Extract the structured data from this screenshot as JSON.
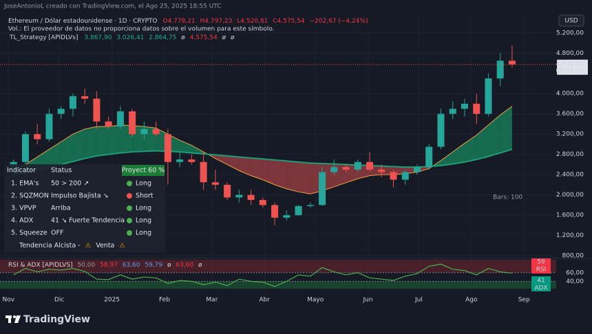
{
  "header": {
    "author_line": "JoseAntonioL creado con TradingView.com, el Ago 25, 2025 18:55 UTC",
    "currency": "USD",
    "symbol": "Ethereum / Dólar estadounidense · 1D · CRYPTO",
    "ohlc": [
      "O4.778,21",
      "H4.797,23",
      "L4.520,81",
      "C4.575,54",
      "−202,67 (−4,24%)"
    ],
    "volume_note": "Vol.: El proveedor de datos no proporciona datos sobre el volumen para este símbolo.",
    "strategy_name": "TL_Strategy [APIDLVs]",
    "strategy_values": [
      "3.867,90",
      "3.026,41",
      "2.864,75",
      "ø",
      "4.575,54",
      "ø",
      "ø"
    ]
  },
  "chart_data": {
    "type": "candlestick",
    "x": [
      3,
      10,
      17,
      24,
      31,
      38,
      45,
      52,
      59,
      66,
      73,
      80,
      87,
      94,
      101,
      108,
      115,
      122,
      129,
      136,
      143,
      150,
      157,
      164,
      171,
      178,
      185,
      192,
      199,
      206,
      213,
      220,
      227,
      234,
      241,
      248,
      255,
      262,
      269,
      276,
      283,
      290,
      297
    ],
    "open": [
      2500,
      2650,
      3200,
      3100,
      3600,
      3700,
      3950,
      3900,
      3450,
      3350,
      3650,
      3200,
      3300,
      3200,
      2650,
      2700,
      2650,
      2250,
      2200,
      1950,
      2000,
      1900,
      1800,
      1550,
      1600,
      1780,
      1800,
      2450,
      2550,
      2500,
      2650,
      2500,
      2450,
      2300,
      2450,
      2550,
      2950,
      3600,
      3700,
      3800,
      3600,
      4300,
      4650
    ],
    "high": [
      2700,
      3250,
      3400,
      3700,
      3750,
      4000,
      4100,
      4050,
      3550,
      3750,
      3700,
      3450,
      3450,
      3300,
      2850,
      2800,
      2850,
      2500,
      2250,
      2100,
      2100,
      1950,
      1850,
      1700,
      1800,
      1850,
      2550,
      2700,
      2600,
      2700,
      2850,
      2600,
      2500,
      2500,
      2600,
      3000,
      3700,
      3850,
      3900,
      4000,
      4400,
      4800,
      4950
    ],
    "low": [
      2400,
      2600,
      3000,
      3050,
      3500,
      3550,
      3800,
      3300,
      3300,
      3300,
      3150,
      3100,
      3150,
      2200,
      2550,
      2600,
      2100,
      2100,
      1900,
      1850,
      1800,
      1750,
      1400,
      1500,
      1580,
      1750,
      1780,
      2400,
      2450,
      2450,
      2450,
      2350,
      2150,
      2200,
      2400,
      2500,
      2900,
      3500,
      3550,
      3400,
      3550,
      4150,
      4520
    ],
    "close": [
      2650,
      3200,
      3100,
      3600,
      3700,
      3950,
      3900,
      3450,
      3350,
      3650,
      3200,
      3300,
      3200,
      2650,
      2700,
      2650,
      2250,
      2200,
      1950,
      2000,
      1900,
      1800,
      1550,
      1600,
      1780,
      1800,
      2450,
      2550,
      2500,
      2650,
      2500,
      2450,
      2300,
      2450,
      2550,
      2950,
      3600,
      3700,
      3800,
      3600,
      4300,
      4650,
      4575.54
    ],
    "up_color": "#26a69a",
    "down_color": "#ef5350",
    "overlays": [
      {
        "color": "#f0a040",
        "values": [
          2500,
          2600,
          2750,
          2900,
          3050,
          3200,
          3300,
          3350,
          3350,
          3380,
          3370,
          3350,
          3320,
          3200,
          3080,
          2980,
          2850,
          2720,
          2600,
          2480,
          2380,
          2300,
          2200,
          2120,
          2060,
          2020,
          2080,
          2160,
          2240,
          2320,
          2380,
          2400,
          2400,
          2420,
          2450,
          2520,
          2680,
          2850,
          3020,
          3180,
          3380,
          3580,
          3750
        ]
      },
      {
        "color": "#1e9e78",
        "values": [
          2400,
          2430,
          2480,
          2540,
          2600,
          2660,
          2720,
          2770,
          2800,
          2830,
          2850,
          2860,
          2870,
          2860,
          2850,
          2830,
          2810,
          2790,
          2770,
          2750,
          2730,
          2710,
          2690,
          2670,
          2650,
          2630,
          2620,
          2610,
          2600,
          2590,
          2580,
          2570,
          2560,
          2550,
          2550,
          2560,
          2580,
          2610,
          2650,
          2700,
          2760,
          2830,
          2900
        ]
      }
    ],
    "ribbon_colors": {
      "up": "#17a06a",
      "down": "#c0474b"
    },
    "xlim": [
      -5,
      323
    ],
    "xticks": [
      {
        "value": 0,
        "label": "Nov"
      },
      {
        "value": 30,
        "label": "Dic"
      },
      {
        "value": 61,
        "label": "2025"
      },
      {
        "value": 92,
        "label": "Feb"
      },
      {
        "value": 120,
        "label": "Mar"
      },
      {
        "value": 151,
        "label": "Abr"
      },
      {
        "value": 181,
        "label": "Mayo"
      },
      {
        "value": 212,
        "label": "Jun"
      },
      {
        "value": 242,
        "label": "Jul"
      },
      {
        "value": 273,
        "label": "Ago"
      },
      {
        "value": 304,
        "label": "Sep"
      }
    ],
    "ylim": [
      760,
      5550
    ],
    "yticks": [
      {
        "value": 800,
        "label": "800,00"
      },
      {
        "value": 1200,
        "label": "1.200,00"
      },
      {
        "value": 1600,
        "label": "1.600,00"
      },
      {
        "value": 2000,
        "label": "2.000,00"
      },
      {
        "value": 2400,
        "label": "2.400,00"
      },
      {
        "value": 2800,
        "label": "2.800,00"
      },
      {
        "value": 3200,
        "label": "3.200,00"
      },
      {
        "value": 3600,
        "label": "3.600,00"
      },
      {
        "value": 4000,
        "label": "4.000,00"
      },
      {
        "value": 4800,
        "label": "4.800,00"
      },
      {
        "value": 5200,
        "label": "5.200,00"
      }
    ],
    "grid": true,
    "last_price": {
      "value": 4575.54,
      "label": "4.575,54"
    },
    "countdown": "05:04:07",
    "bars_label": "Bars: 100"
  },
  "strategy_table": {
    "headers": [
      "Indicator",
      "Status",
      "Proyect 60 %"
    ],
    "rows": [
      [
        "1. EMA's",
        "50 > 200 ↗",
        "Long"
      ],
      [
        "2. SQZMON",
        "Impulso Bajista ↘",
        "Short"
      ],
      [
        "3. VPVP",
        "Arriba",
        "Long"
      ],
      [
        "4. ADX",
        "41 ↘ Fuerte Tendencia",
        "Long"
      ],
      [
        "5. Squeeze",
        "OFF",
        "Long"
      ]
    ],
    "footer": [
      "Tendencia Alcista -",
      "⚠",
      "Venta",
      "⚠"
    ]
  },
  "rsi_panel": {
    "title": "RSI & ADX [APIDLVS]",
    "legend_values": [
      "50,00",
      "58,97",
      "63,60",
      "59,79",
      "ø",
      "63,60",
      "ø"
    ],
    "values": [
      55,
      70,
      62,
      68,
      66,
      70,
      63,
      45,
      44,
      55,
      45,
      50,
      48,
      35,
      42,
      40,
      32,
      38,
      30,
      45,
      40,
      38,
      28,
      40,
      55,
      52,
      72,
      62,
      55,
      60,
      48,
      45,
      42,
      52,
      58,
      75,
      80,
      68,
      65,
      55,
      70,
      62,
      59
    ],
    "color": "#4caf50",
    "ylim": [
      23,
      90
    ],
    "yticks": [
      {
        "value": 60,
        "label": "60,00"
      },
      {
        "value": 40,
        "label": "40,00"
      }
    ],
    "rsi_value": 59,
    "rsi_label": "RSI",
    "adx_value": 41,
    "adx_label": "ADX"
  },
  "footer": {
    "logo": "TradingView"
  }
}
